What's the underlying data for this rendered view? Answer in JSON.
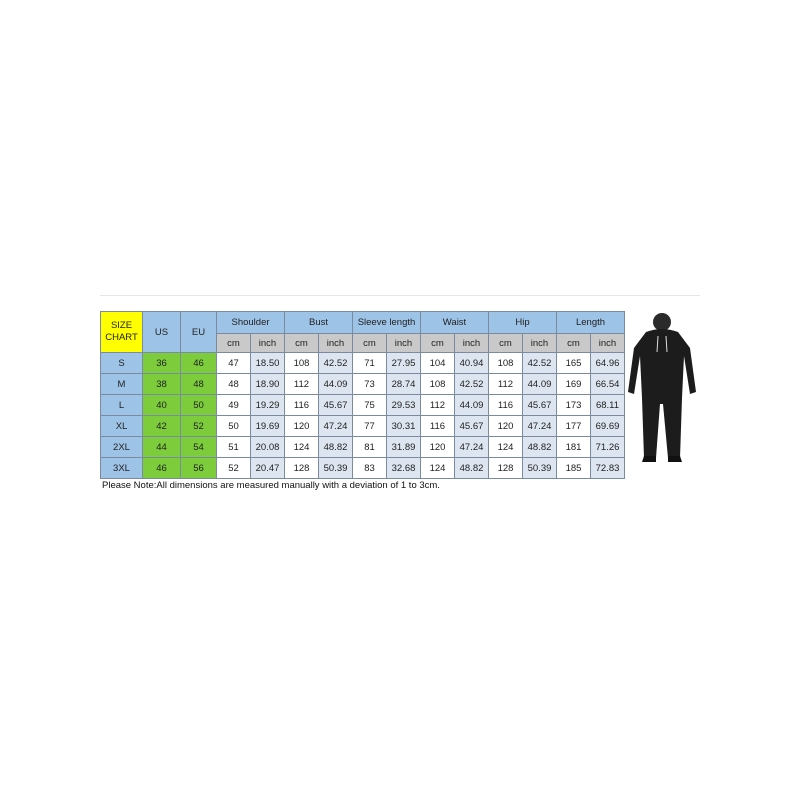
{
  "header": {
    "size_chart": "SIZE CHART",
    "us": "US",
    "eu": "EU",
    "groups": [
      "Shoulder",
      "Bust",
      "Sleeve length",
      "Waist",
      "Hip",
      "Length"
    ],
    "units": [
      "cm",
      "inch"
    ]
  },
  "rows": [
    {
      "size": "S",
      "us": "36",
      "eu": "46",
      "vals": [
        "47",
        "18.50",
        "108",
        "42.52",
        "71",
        "27.95",
        "104",
        "40.94",
        "108",
        "42.52",
        "165",
        "64.96"
      ]
    },
    {
      "size": "M",
      "us": "38",
      "eu": "48",
      "vals": [
        "48",
        "18.90",
        "112",
        "44.09",
        "73",
        "28.74",
        "108",
        "42.52",
        "112",
        "44.09",
        "169",
        "66.54"
      ]
    },
    {
      "size": "L",
      "us": "40",
      "eu": "50",
      "vals": [
        "49",
        "19.29",
        "116",
        "45.67",
        "75",
        "29.53",
        "112",
        "44.09",
        "116",
        "45.67",
        "173",
        "68.11"
      ]
    },
    {
      "size": "XL",
      "us": "42",
      "eu": "52",
      "vals": [
        "50",
        "19.69",
        "120",
        "47.24",
        "77",
        "30.31",
        "116",
        "45.67",
        "120",
        "47.24",
        "177",
        "69.69"
      ]
    },
    {
      "size": "2XL",
      "us": "44",
      "eu": "54",
      "vals": [
        "51",
        "20.08",
        "124",
        "48.82",
        "81",
        "31.89",
        "120",
        "47.24",
        "124",
        "48.82",
        "181",
        "71.26"
      ]
    },
    {
      "size": "3XL",
      "us": "46",
      "eu": "56",
      "vals": [
        "52",
        "20.47",
        "128",
        "50.39",
        "83",
        "32.68",
        "124",
        "48.82",
        "128",
        "50.39",
        "185",
        "72.83"
      ]
    }
  ],
  "note": "Please Note:All dimensions are measured manually with a deviation of 1 to 3cm.",
  "colors": {
    "header": "#9dc3e6",
    "size_label": "#ffff00",
    "us_eu": "#7ccc3c",
    "units": "#c9c9c9"
  }
}
